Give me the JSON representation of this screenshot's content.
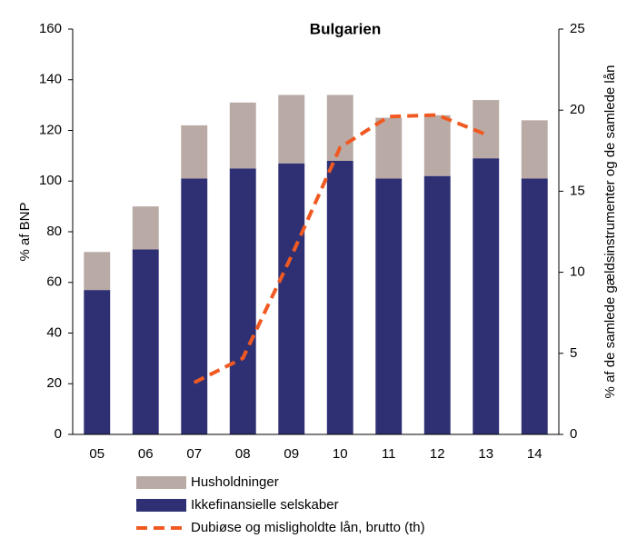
{
  "chart_data": {
    "type": "bar",
    "stacked": true,
    "title": "Bulgarien",
    "ylabel": "% af BNP",
    "y2label": "% af de samlede gældsinstrumenter og de samlede lån",
    "categories": [
      "05",
      "06",
      "07",
      "08",
      "09",
      "10",
      "11",
      "12",
      "13",
      "14"
    ],
    "series": [
      {
        "name": "Husholdninger",
        "type": "bar",
        "color": "#b9aaa5",
        "values": [
          15,
          17,
          21,
          26,
          27,
          26,
          24,
          24,
          23,
          23
        ]
      },
      {
        "name": "Ikkefinansielle selskaber",
        "type": "bar",
        "color": "#2e3073",
        "values": [
          57,
          73,
          101,
          105,
          107,
          108,
          101,
          102,
          109,
          101
        ]
      },
      {
        "name": "Dubiøse og misligholdte lån, brutto (th)",
        "type": "line",
        "axis": "y2",
        "dashed": true,
        "color": "#f05a22",
        "values": [
          null,
          null,
          3.2,
          4.7,
          11,
          17.7,
          19.6,
          19.7,
          18.5,
          null
        ]
      }
    ],
    "ylim": [
      0,
      160
    ],
    "yticks": [
      0,
      20,
      40,
      60,
      80,
      100,
      120,
      140,
      160
    ],
    "y2lim": [
      0,
      25
    ],
    "y2ticks": [
      0,
      5,
      10,
      15,
      20,
      25
    ],
    "grid": false
  }
}
